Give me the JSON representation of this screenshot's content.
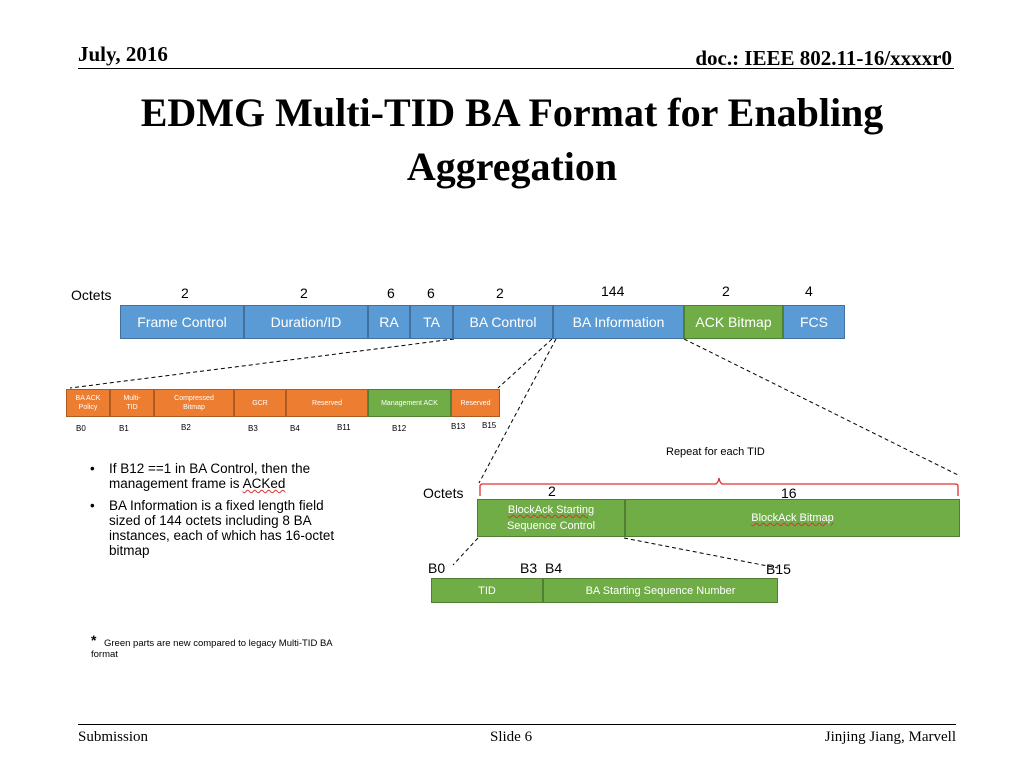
{
  "header": {
    "date": "July, 2016",
    "doc": "doc.: IEEE 802.11-16/xxxxr0"
  },
  "title": {
    "line1": "EDMG Multi-TID BA Format for Enabling",
    "line2": "Aggregation"
  },
  "frame": {
    "octets_label": "Octets",
    "fields": [
      {
        "name": "Frame Control",
        "octets": "2"
      },
      {
        "name": "Duration/ID",
        "octets": "2"
      },
      {
        "name": "RA",
        "octets": "6"
      },
      {
        "name": "TA",
        "octets": "6"
      },
      {
        "name": "BA Control",
        "octets": "2"
      },
      {
        "name": "BA Information",
        "octets": "144"
      },
      {
        "name": "ACK Bitmap",
        "octets": "2"
      },
      {
        "name": "FCS",
        "octets": "4"
      }
    ]
  },
  "ba_control": {
    "fields": [
      {
        "line1": "BA ACK",
        "line2": "Policy"
      },
      {
        "line1": "Multi-",
        "line2": "TID"
      },
      {
        "line1": "Compressed",
        "line2": "Bitmap"
      },
      {
        "line1": "GCR",
        "line2": ""
      },
      {
        "line1": "Reserved",
        "line2": ""
      },
      {
        "line1": "Management  ACK",
        "line2": ""
      },
      {
        "line1": "Reserved",
        "line2": ""
      }
    ],
    "bits": [
      "B0",
      "B1",
      "B2",
      "B3",
      "B4",
      "B11",
      "B12",
      "B13",
      "B15"
    ]
  },
  "ba_info": {
    "repeat_label": "Repeat for each TID",
    "octets_label": "Octets",
    "octets": [
      "2",
      "16"
    ],
    "fields": [
      {
        "line1": "BlockAck Starting",
        "line2": "Sequence Control"
      },
      {
        "line1": "BlockAck Bitmap",
        "line2": ""
      }
    ]
  },
  "ssc": {
    "bits": [
      "B0",
      "B3",
      "B4",
      "B15"
    ],
    "fields": [
      "TID",
      "BA Starting Sequence Number"
    ]
  },
  "bullets": [
    {
      "l1": "If B12 ==1 in BA Control, then the",
      "l2": "management frame is ACKed",
      "l3": "",
      "l4": ""
    },
    {
      "l1": "BA Information is a fixed length field",
      "l2": "sized of 144 octets including 8 BA",
      "l3": "instances, each of which has 16-octet",
      "l4": "bitmap"
    }
  ],
  "note": {
    "star": "*",
    "l1": "Green parts are new compared to legacy Multi-TID BA",
    "l2": "format"
  },
  "footer": {
    "left": "Submission",
    "center": "Slide 6",
    "right": "Jinjing Jiang, Marvell"
  },
  "colors": {
    "blue": "#5b9bd5",
    "green": "#70ad47",
    "orange": "#ed7d31",
    "brace": "#e03030"
  }
}
